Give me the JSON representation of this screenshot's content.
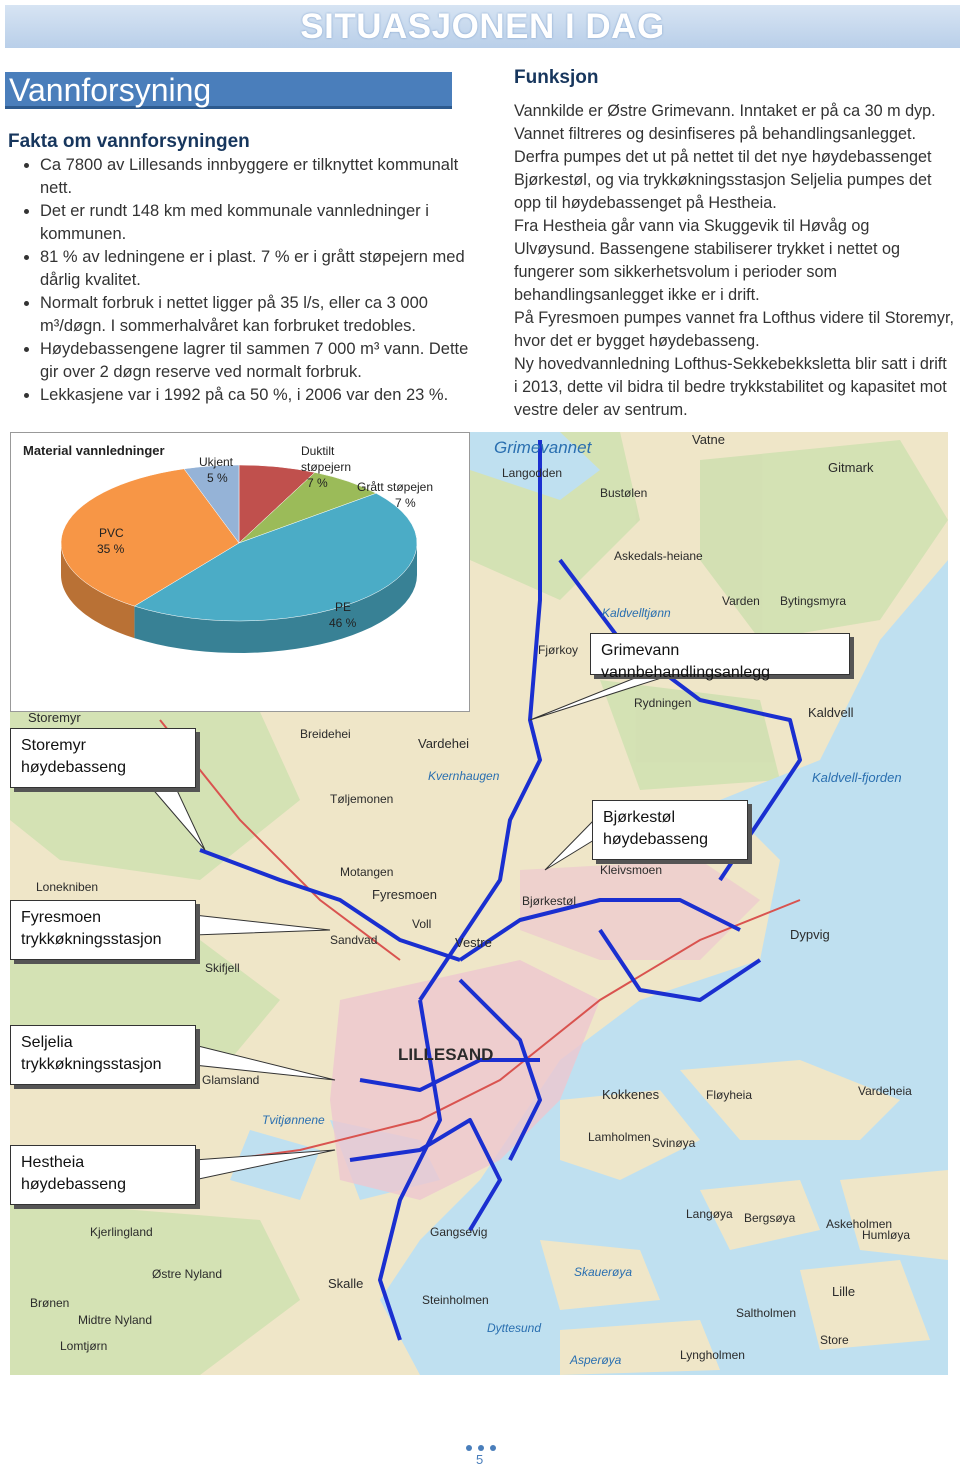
{
  "header": {
    "title": "SITUASJONEN I DAG"
  },
  "section": {
    "title": "Vannforsyning"
  },
  "facts": {
    "heading": "Fakta om vannforsyningen",
    "items": [
      "Ca 7800 av Lillesands innbyggere er tilknyttet kommunalt nett.",
      "Det er rundt 148 km med kommunale vannledninger i kommunen.",
      "81 % av ledningene er i plast. 7 % er i grått støpejern med dårlig kvalitet.",
      "Normalt forbruk i nettet ligger på 35 l/s, eller ca 3 000 m³/døgn.  I sommerhalvåret kan forbruket tredobles.",
      "Høydebassengene lagrer til sammen 7 000 m³ vann. Dette gir over 2 døgn reserve ved normalt forbruk.",
      "Lekkasjene var i 1992 på ca 50 %, i 2006 var den 23 %."
    ]
  },
  "funksjon": {
    "heading": "Funksjon",
    "paragraphs": [
      "Vannkilde er Østre Grimevann.  Inntaket er på ca 30 m dyp. Vannet filtreres og desinfiseres på behandlingsanlegget. Derfra pumpes det ut på nettet til det nye høydebassenget Bjørkestøl, og via trykkøkningsstasjon Seljelia pumpes det opp til høydebassenget på Hestheia.",
      "Fra Hestheia går vann via Skuggevik til Høvåg og Ulvøysund.  Bassengene stabiliserer trykket i nettet og fungerer som sikkerhetsvolum i perioder som behandlingsanlegget ikke er i drift.",
      "På Fyresmoen pumpes vannet fra Lofthus videre til Storemyr, hvor det er bygget høydebasseng.",
      "Ny hovedvannledning Lofthus-Sekkebekksletta blir satt i drift i 2013, dette vil bidra til bedre trykkstabilitet og kapasitet mot vestre deler av sentrum."
    ]
  },
  "chart_data": {
    "type": "pie",
    "title": "Material vannledninger",
    "categories": [
      "Duktilt støpejern",
      "Grått støpejen",
      "PE",
      "PVC",
      "Ukjent"
    ],
    "values": [
      7,
      7,
      46,
      35,
      5
    ],
    "value_labels": [
      "7 %",
      "7 %",
      "46 %",
      "35 %",
      "5 %"
    ],
    "colors": [
      "#c0504d",
      "#9bbb59",
      "#4bacc6",
      "#f79646",
      "#95b3d7"
    ]
  },
  "callouts": [
    {
      "lines": [
        "Grimevann vannbehandlingsanlegg"
      ]
    },
    {
      "lines": [
        "Storemyr",
        "høydebasseng"
      ]
    },
    {
      "lines": [
        "Bjørkestøl",
        "høydebasseng"
      ]
    },
    {
      "lines": [
        "Fyresmoen",
        "trykkøkningsstasjon"
      ]
    },
    {
      "lines": [
        "Seljelia",
        "trykkøkningsstasjon"
      ]
    },
    {
      "lines": [
        "Hestheia",
        "høydebasseng"
      ]
    }
  ],
  "map_labels": [
    "Grimevannet",
    "Vatne",
    "Langodden",
    "Gitmark",
    "Bustølen",
    "Askedals-heiane",
    "Varden",
    "Bytingsmyra",
    "Kaldvelltjønn",
    "Fjørkoy",
    "Rydningen",
    "Kaldvell",
    "Storemyr",
    "Breidehei",
    "Vardehei",
    "Kvernhaugen",
    "Tøljemonen",
    "Kaldvell-fjorden",
    "Bjørkestøl",
    "Kleivsmoen",
    "Motangen",
    "Fyresmoen",
    "Lonekniben",
    "Voll",
    "Vestre",
    "Sandvad",
    "Skifjell",
    "Dypvig",
    "LILLESAND",
    "Glamsland",
    "Tvitjønnene",
    "Kokkenes",
    "Fløyheia",
    "Vardeheia",
    "Lamholmen",
    "Svinøya",
    "Kjerlingland",
    "Gangsevig",
    "Skalle",
    "Skauerøya",
    "Steinholmen",
    "Saltholmen",
    "Store",
    "Lille",
    "Østre Nyland",
    "Brønen",
    "Midtre Nyland",
    "Asperøya",
    "Lyngholmen",
    "Dyttesund",
    "Humløya",
    "Askeholmen",
    "Langøya",
    "Bergsøya",
    "Lomtjørn"
  ],
  "page_number": "5"
}
